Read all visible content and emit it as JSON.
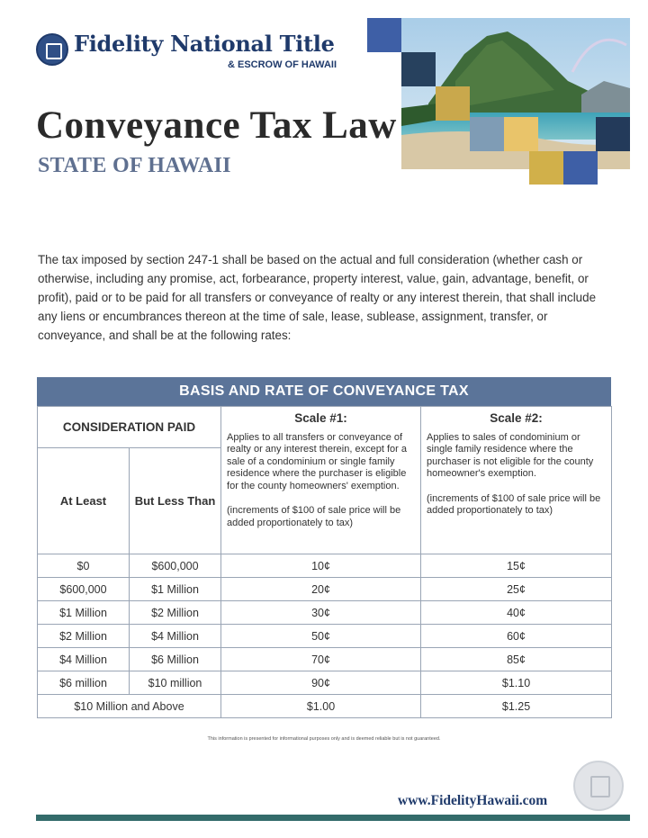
{
  "header": {
    "logo_name": "Fidelity National Title",
    "logo_sub": "& ESCROW OF HAWAII",
    "title": "Conveyance Tax Law",
    "subtitle": "STATE OF HAWAII"
  },
  "intro": "The tax imposed by section 247-1 shall be based on the actual and full consideration (whether cash or otherwise, including any promise, act, forbearance, property interest, value, gain, advantage, benefit, or profit), paid or to be paid for all transfers or conveyance of realty or any interest therein, that shall include any liens or encumbrances thereon at the time of sale, lease, sublease, assignment, transfer, or conveyance, and shall be at the following rates:",
  "table": {
    "heading": "BASIS AND RATE OF CONVEYANCE TAX",
    "consideration_paid": "CONSIDERATION PAID",
    "at_least": "At Least",
    "but_less_than": "But Less Than",
    "scale1": {
      "title": "Scale #1:",
      "desc": "Applies to all transfers or conveyance of realty or any interest therein, except for a sale of a condominium or single family residence where the purchaser is eligible for the county homeowners' exemption.",
      "note": "(increments of $100 of sale price will be added proportionately to tax)"
    },
    "scale2": {
      "title": "Scale #2:",
      "desc": "Applies to sales of condominium or single family residence where the purchaser is not eligible for the county homeowner's exemption.",
      "note": "(increments of $100 of sale price will be added proportionately to tax)"
    },
    "rows": [
      {
        "at_least": "$0",
        "less_than": "$600,000",
        "scale1": "10¢",
        "scale2": "15¢"
      },
      {
        "at_least": "$600,000",
        "less_than": "$1 Million",
        "scale1": "20¢",
        "scale2": "25¢"
      },
      {
        "at_least": "$1 Million",
        "less_than": "$2 Million",
        "scale1": "30¢",
        "scale2": "40¢"
      },
      {
        "at_least": "$2 Million",
        "less_than": "$4 Million",
        "scale1": "50¢",
        "scale2": "60¢"
      },
      {
        "at_least": "$4 Million",
        "less_than": "$6 Million",
        "scale1": "70¢",
        "scale2": "85¢"
      },
      {
        "at_least": "$6 million",
        "less_than": "$10 million",
        "scale1": "90¢",
        "scale2": "$1.10"
      }
    ],
    "last_row": {
      "label": "$10 Million and Above",
      "scale1": "$1.00",
      "scale2": "$1.25"
    }
  },
  "disclaimer": "This information is presented for informational purposes only and is deemed reliable but is not guaranteed.",
  "footer": {
    "url": "www.FidelityHawaii.com"
  },
  "colors": {
    "brand_navy": "#1f3a6b",
    "table_header": "#5b7499",
    "footer_bar": "#336b6a"
  }
}
